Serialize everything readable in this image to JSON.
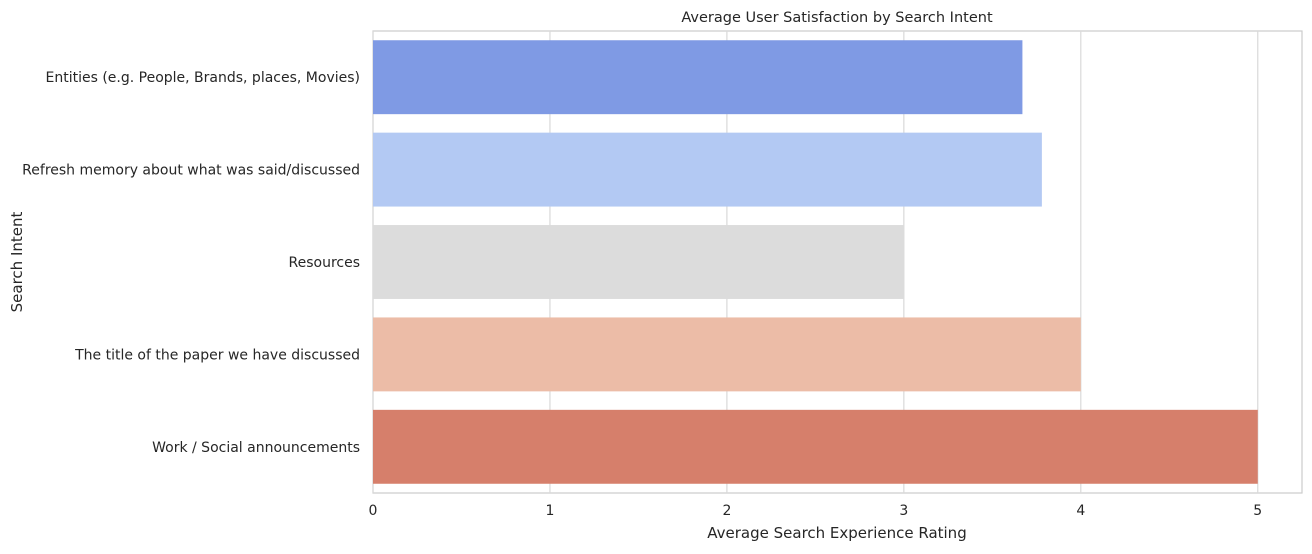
{
  "chart_data": {
    "type": "bar",
    "orientation": "horizontal",
    "title": "Average User Satisfaction by Search Intent",
    "xlabel": "Average Search Experience Rating",
    "ylabel": "Search Intent",
    "xlim": [
      0,
      5.25
    ],
    "xticks": [
      0,
      1,
      2,
      3,
      4,
      5
    ],
    "grid": true,
    "categories": [
      "Entities (e.g. People, Brands, places, Movies)",
      "Refresh memory about what was said/discussed",
      "Resources",
      "The title of the paper we have discussed",
      "Work / Social announcements"
    ],
    "values": [
      3.67,
      3.78,
      3.0,
      4.0,
      5.0
    ],
    "colors": [
      "#7f9ae4",
      "#b3c9f3",
      "#dcdcdc",
      "#ecbca7",
      "#d67f6b"
    ]
  }
}
